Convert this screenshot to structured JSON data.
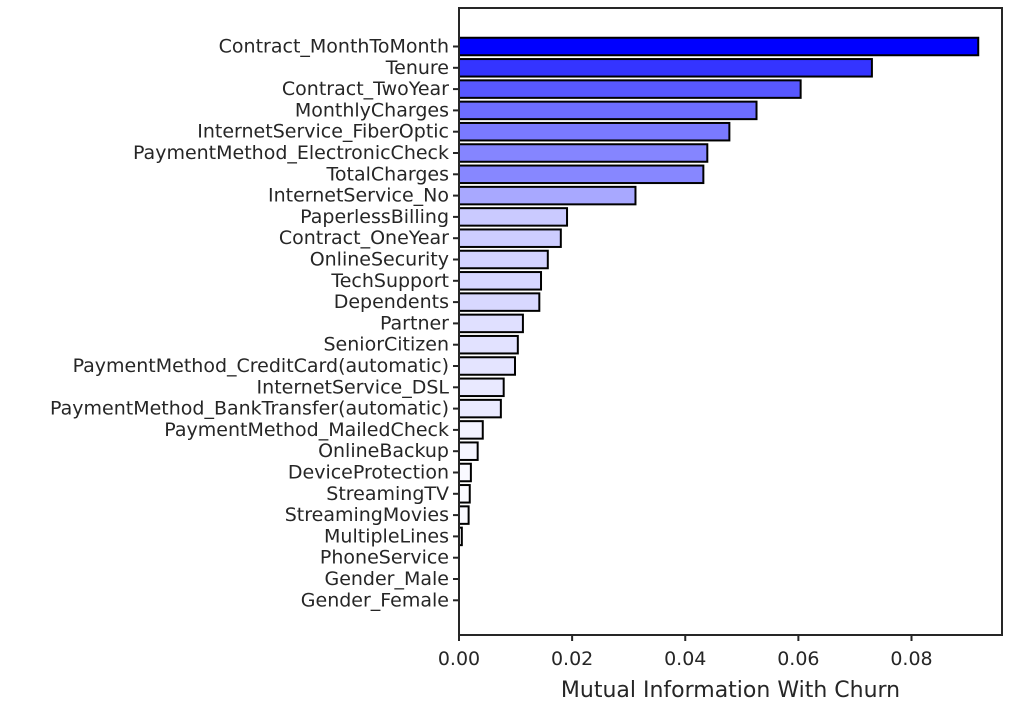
{
  "chart_data": {
    "type": "bar",
    "orientation": "horizontal",
    "title": "",
    "xlabel": "Mutual Information With Churn",
    "ylabel": "",
    "xlim": [
      0,
      0.096
    ],
    "x_ticks": [
      "0.00",
      "0.02",
      "0.04",
      "0.06",
      "0.08"
    ],
    "grid": false,
    "bar_edge_color": "#000000",
    "color_scale": {
      "low": "#ffffff",
      "high": "#0000ff"
    },
    "categories": [
      "Contract_MonthToMonth",
      "Tenure",
      "Contract_TwoYear",
      "MonthlyCharges",
      "InternetService_FiberOptic",
      "PaymentMethod_ElectronicCheck",
      "TotalCharges",
      "InternetService_No",
      "PaperlessBilling",
      "Contract_OneYear",
      "OnlineSecurity",
      "TechSupport",
      "Dependents",
      "Partner",
      "SeniorCitizen",
      "PaymentMethod_CreditCard(automatic)",
      "InternetService_DSL",
      "PaymentMethod_BankTransfer(automatic)",
      "PaymentMethod_MailedCheck",
      "OnlineBackup",
      "DeviceProtection",
      "StreamingTV",
      "StreamingMovies",
      "MultipleLines",
      "PhoneService",
      "Gender_Male",
      "Gender_Female"
    ],
    "values": [
      0.0918,
      0.073,
      0.0604,
      0.0526,
      0.0478,
      0.0439,
      0.0432,
      0.0312,
      0.0191,
      0.018,
      0.0157,
      0.0145,
      0.0142,
      0.0113,
      0.0104,
      0.0099,
      0.0079,
      0.0074,
      0.0042,
      0.0033,
      0.0021,
      0.0019,
      0.0017,
      0.0005,
      0.0,
      0.0,
      0.0
    ]
  }
}
